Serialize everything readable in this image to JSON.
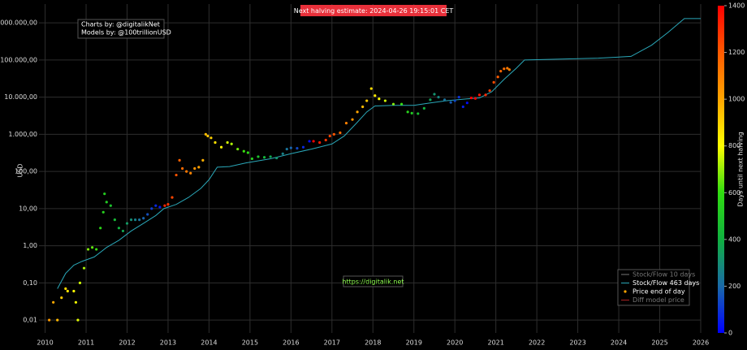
{
  "chart_data": {
    "type": "scatter",
    "title": "Next halving estimate: 2024-04-26 19:15:01 CET",
    "credits": [
      "Charts by: @digitalikNet",
      "Models by: @100trillionUSD"
    ],
    "url": "https://digitalik.net",
    "y_label": "USD",
    "yscale": "log",
    "grid": true,
    "legend_position": "lower right",
    "xlim": [
      2009.85,
      2026
    ],
    "xticks": [
      2010,
      2011,
      2012,
      2013,
      2014,
      2015,
      2016,
      2017,
      2018,
      2019,
      2020,
      2021,
      2022,
      2023,
      2024,
      2025,
      2026
    ],
    "ylim": [
      0.0045,
      3200000
    ],
    "yticks": [
      {
        "value": 0.01,
        "label": "0,01"
      },
      {
        "value": 0.1,
        "label": "0,10"
      },
      {
        "value": 1,
        "label": "1,00"
      },
      {
        "value": 10,
        "label": "10,00"
      },
      {
        "value": 100,
        "label": "100,00"
      },
      {
        "value": 1000,
        "label": "1.000,00"
      },
      {
        "value": 10000,
        "label": "10.000,00"
      },
      {
        "value": 100000,
        "label": "100.000,00"
      },
      {
        "value": 1000000,
        "label": "1.000.000,00"
      }
    ],
    "colorbar": {
      "label": "Days until next halving",
      "lim": [
        0,
        1400
      ],
      "ticks": [
        0,
        200,
        400,
        600,
        800,
        1000,
        1200,
        1400
      ],
      "colors": [
        "#0000ff",
        "#1a6aa8",
        "#10b040",
        "#30dd10",
        "#ffff00",
        "#ffa500",
        "#ff5a00",
        "#ff0000"
      ]
    },
    "series": [
      {
        "name": "Stock/Flow 10 days",
        "type": "line",
        "color": "#777777",
        "visible": false,
        "x": [],
        "values": []
      },
      {
        "name": "Stock/Flow 463 days",
        "type": "line",
        "color": "#2aa7b8",
        "visible": true,
        "x": [
          2010.3,
          2010.5,
          2010.7,
          2010.9,
          2011.2,
          2011.5,
          2011.8,
          2012.1,
          2012.4,
          2012.7,
          2012.9,
          2013.2,
          2013.5,
          2013.8,
          2014.0,
          2014.2,
          2014.5,
          2014.9,
          2015.5,
          2016.0,
          2016.5,
          2017.0,
          2017.3,
          2017.6,
          2017.85,
          2018.05,
          2018.5,
          2019.0,
          2019.4,
          2019.8,
          2020.3,
          2020.6,
          2020.9,
          2021.2,
          2021.5,
          2021.7,
          2022.5,
          2023.5,
          2024.3,
          2024.8,
          2025.2,
          2025.6,
          2026.0
        ],
        "values": [
          0.07,
          0.18,
          0.3,
          0.38,
          0.5,
          0.9,
          1.4,
          2.5,
          4,
          6.5,
          10,
          13,
          20,
          35,
          60,
          130,
          135,
          170,
          220,
          300,
          400,
          550,
          900,
          2000,
          4000,
          5800,
          6000,
          6000,
          7000,
          8000,
          9000,
          9500,
          14000,
          30000,
          60000,
          100000,
          105000,
          112000,
          125000,
          250000,
          550000,
          1300000,
          1300000
        ]
      },
      {
        "name": "Price end of day",
        "type": "scatter",
        "color": "#ffa500",
        "visible": true,
        "x": [
          2010.1,
          2010.2,
          2010.3,
          2010.4,
          2010.5,
          2010.55,
          2010.7,
          2010.75,
          2010.8,
          2010.85,
          2010.95,
          2011.05,
          2011.15,
          2011.25,
          2011.35,
          2011.42,
          2011.45,
          2011.5,
          2011.6,
          2011.7,
          2011.8,
          2011.9,
          2012.0,
          2012.1,
          2012.2,
          2012.3,
          2012.4,
          2012.5,
          2012.6,
          2012.7,
          2012.8,
          2012.92,
          2013.0,
          2013.1,
          2013.2,
          2013.28,
          2013.35,
          2013.45,
          2013.55,
          2013.65,
          2013.75,
          2013.85,
          2013.92,
          2013.97,
          2014.05,
          2014.15,
          2014.3,
          2014.45,
          2014.55,
          2014.7,
          2014.85,
          2014.95,
          2015.05,
          2015.2,
          2015.35,
          2015.5,
          2015.65,
          2015.8,
          2015.9,
          2016.0,
          2016.15,
          2016.3,
          2016.45,
          2016.55,
          2016.7,
          2016.85,
          2016.95,
          2017.05,
          2017.2,
          2017.35,
          2017.5,
          2017.62,
          2017.75,
          2017.85,
          2017.96,
          2018.05,
          2018.15,
          2018.3,
          2018.5,
          2018.7,
          2018.85,
          2018.95,
          2019.1,
          2019.25,
          2019.4,
          2019.5,
          2019.6,
          2019.75,
          2019.9,
          2020.0,
          2020.1,
          2020.2,
          2020.3,
          2020.4,
          2020.5,
          2020.6,
          2020.75,
          2020.85,
          2020.95,
          2021.05,
          2021.12,
          2021.2,
          2021.28,
          2021.33
        ],
        "values": [
          0.01,
          0.03,
          0.01,
          0.04,
          0.07,
          0.06,
          0.06,
          0.03,
          0.01,
          0.1,
          0.25,
          0.8,
          0.9,
          0.8,
          3,
          8,
          25,
          15,
          12,
          5,
          3,
          2.5,
          4,
          5,
          5,
          5,
          5.5,
          7,
          10,
          12,
          11,
          12,
          13,
          20,
          80,
          200,
          120,
          100,
          90,
          120,
          130,
          200,
          1000,
          900,
          800,
          600,
          450,
          600,
          550,
          400,
          350,
          320,
          220,
          250,
          240,
          250,
          230,
          300,
          400,
          430,
          420,
          450,
          650,
          650,
          600,
          700,
          900,
          1000,
          1100,
          2000,
          2500,
          4000,
          5500,
          8000,
          17000,
          11000,
          9000,
          8000,
          6500,
          6500,
          4000,
          3700,
          3600,
          5000,
          8500,
          12000,
          10000,
          8500,
          7200,
          8000,
          10000,
          5500,
          7000,
          9500,
          9200,
          11500,
          11500,
          15000,
          25000,
          35000,
          50000,
          58000,
          60000,
          55000
        ],
        "days": [
          1026,
          990,
          953,
          917,
          880,
          862,
          807,
          789,
          771,
          752,
          716,
          679,
          643,
          606,
          570,
          544,
          533,
          515,
          478,
          442,
          405,
          369,
          332,
          296,
          259,
          223,
          186,
          150,
          113,
          77,
          40,
          1315,
          1286,
          1249,
          1213,
          1183,
          1158,
          1121,
          1085,
          1048,
          1012,
          975,
          950,
          931,
          902,
          866,
          811,
          756,
          720,
          665,
          610,
          573,
          537,
          482,
          427,
          373,
          318,
          263,
          226,
          190,
          135,
          80,
          26,
          1392,
          1337,
          1282,
          1245,
          1209,
          1154,
          1099,
          1045,
          1001,
          953,
          917,
          877,
          844,
          807,
          752,
          679,
          606,
          552,
          515,
          460,
          405,
          351,
          314,
          278,
          223,
          168,
          131,
          95,
          58,
          22,
          1432,
          1395,
          1359,
          1304,
          1267,
          1231,
          1194,
          1169,
          1140,
          1110,
          1092
        ]
      },
      {
        "name": "Diff model price",
        "type": "line",
        "color": "#aa2222",
        "visible": false,
        "x": [],
        "values": []
      }
    ]
  }
}
